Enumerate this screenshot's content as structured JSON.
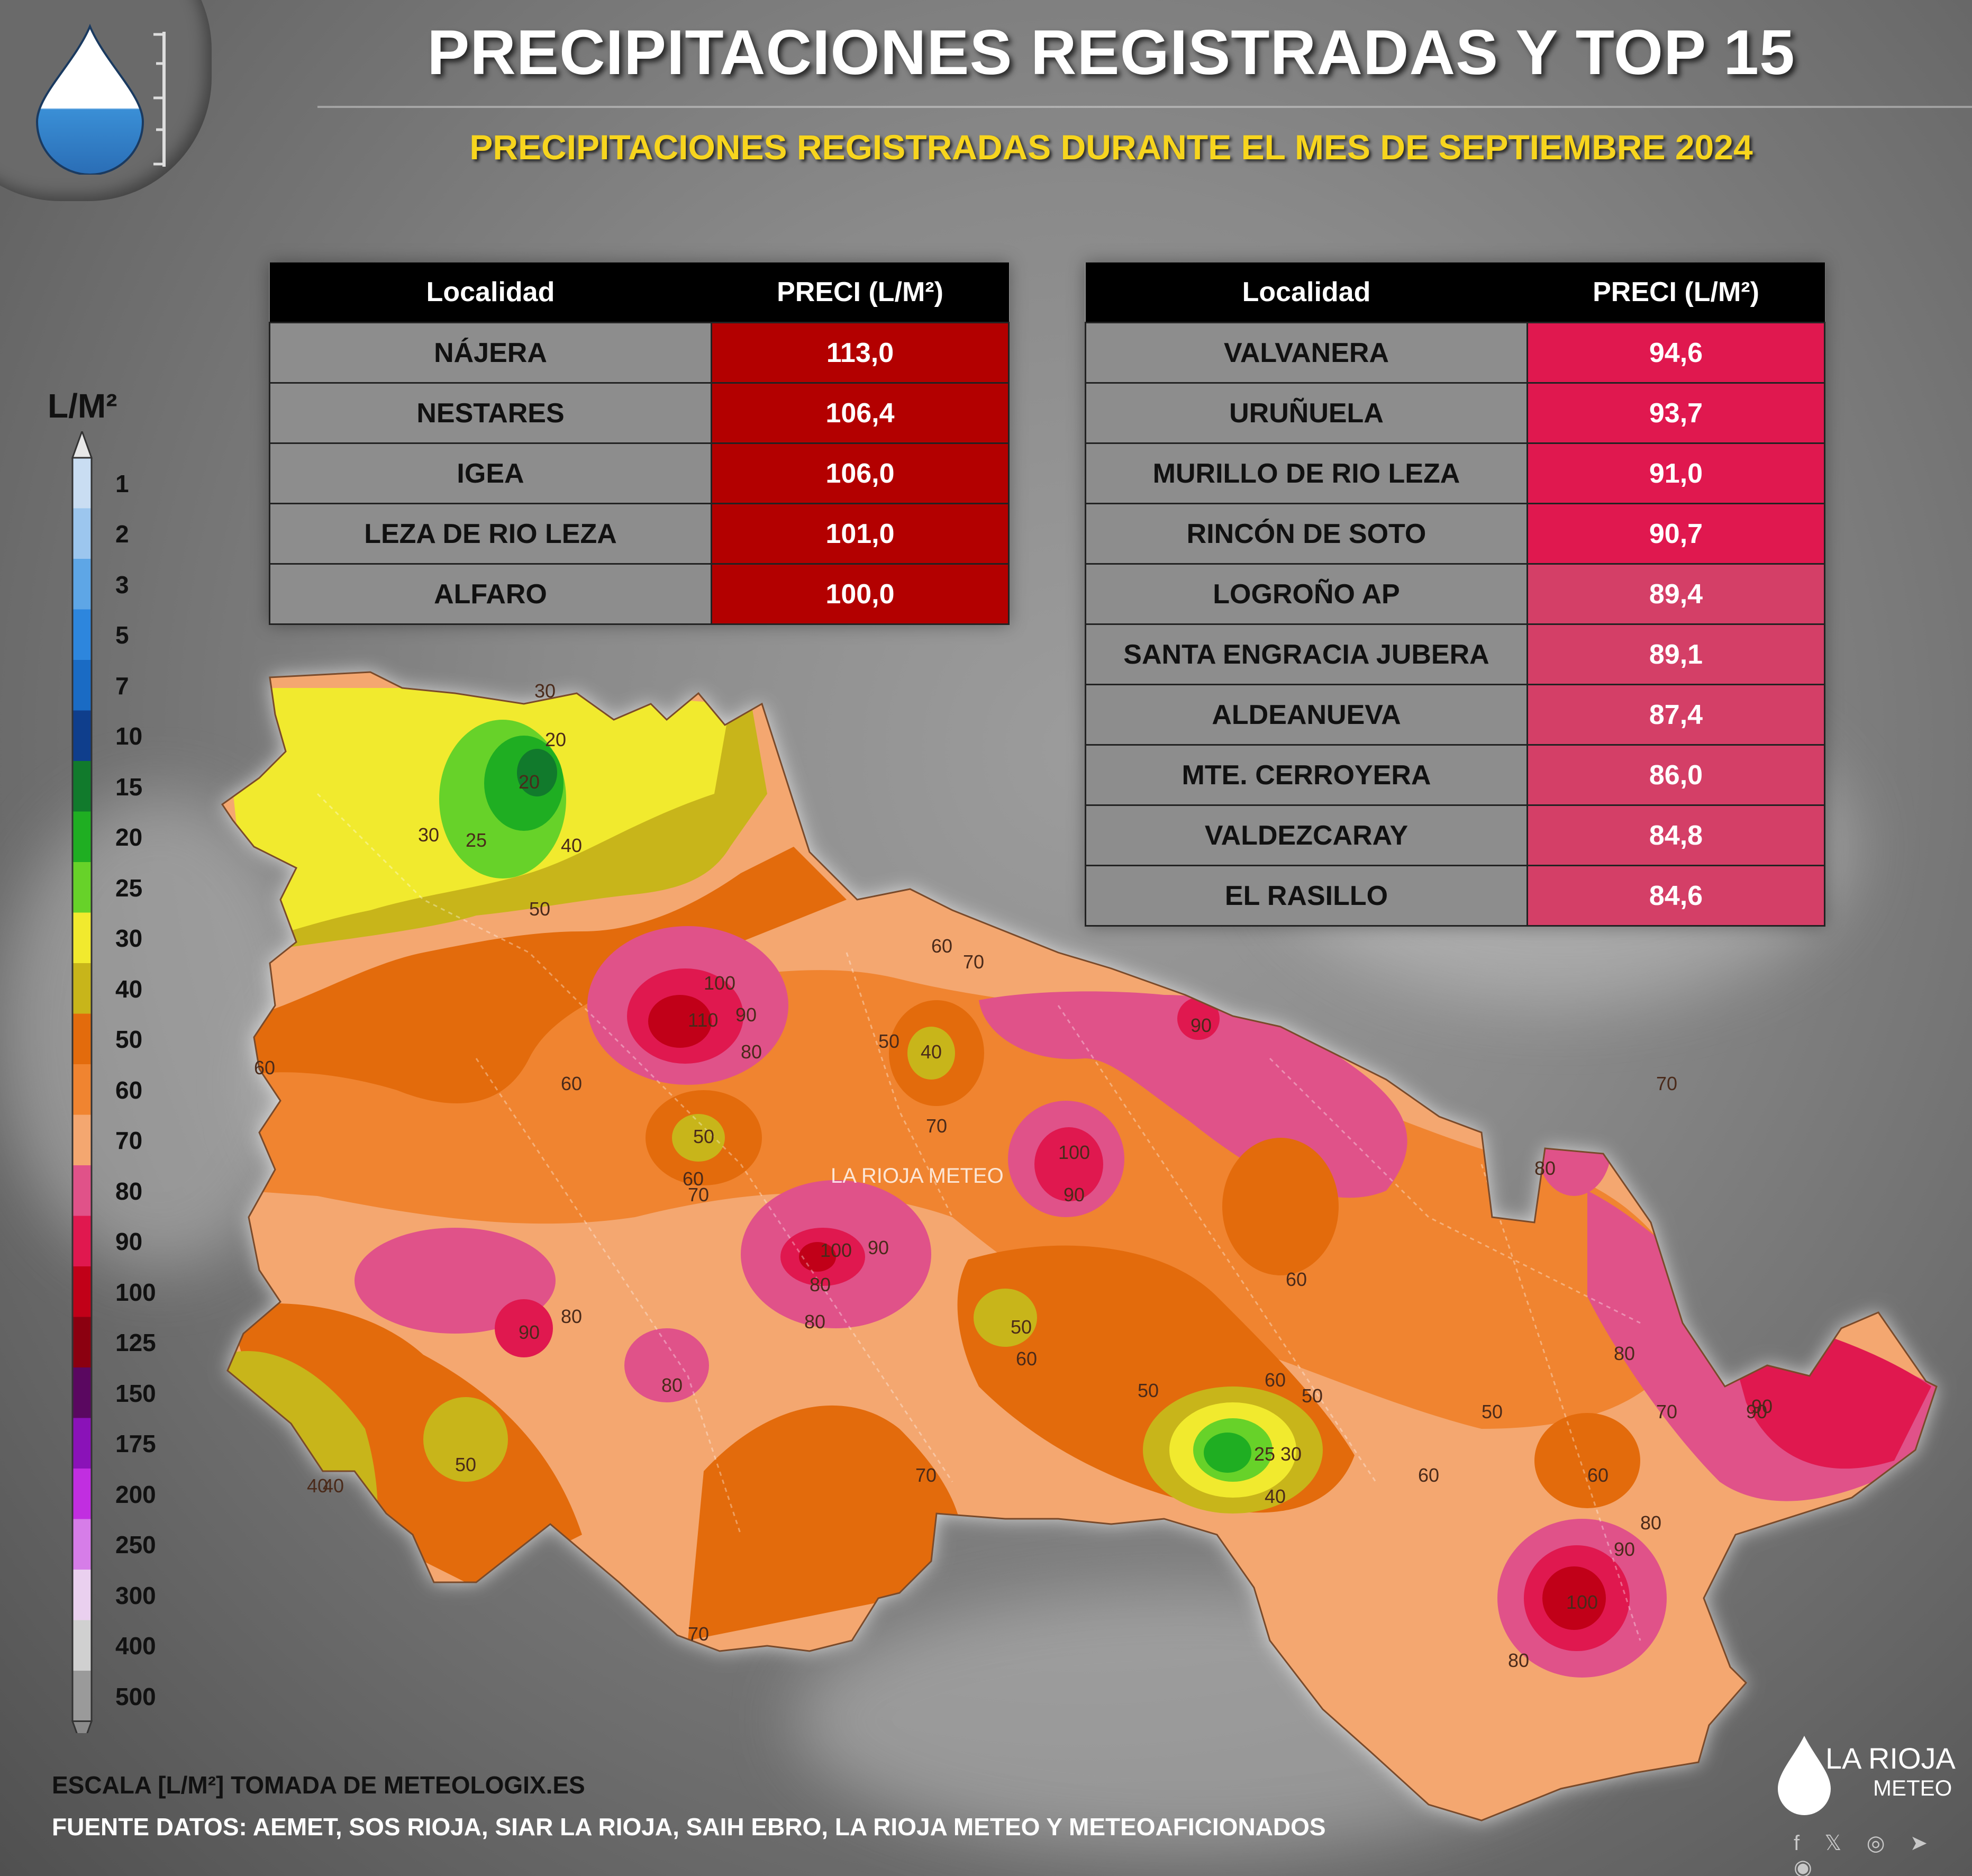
{
  "header": {
    "title": "PRECIPITACIONES REGISTRADAS Y TOP 15",
    "subtitle": "PRECIPITACIONES REGISTRADAS DURANTE EL MES DE SEPTIEMBRE 2024"
  },
  "table_left": {
    "col_locality": "Localidad",
    "col_precip": "PRECI (L/M²)",
    "rows": [
      {
        "locality": "NÁJERA",
        "value": "113,0",
        "color": "#b30000"
      },
      {
        "locality": "NESTARES",
        "value": "106,4",
        "color": "#b30000"
      },
      {
        "locality": "IGEA",
        "value": "106,0",
        "color": "#b30000"
      },
      {
        "locality": "LEZA DE RIO LEZA",
        "value": "101,0",
        "color": "#b30000"
      },
      {
        "locality": "ALFARO",
        "value": "100,0",
        "color": "#b30000"
      }
    ]
  },
  "table_right": {
    "col_locality": "Localidad",
    "col_precip": "PRECI (L/M²)",
    "rows": [
      {
        "locality": "VALVANERA",
        "value": "94,6",
        "color": "#e0184f"
      },
      {
        "locality": "URUÑUELA",
        "value": "93,7",
        "color": "#e0184f"
      },
      {
        "locality": "MURILLO DE RIO LEZA",
        "value": "91,0",
        "color": "#e0184f"
      },
      {
        "locality": "RINCÓN DE SOTO",
        "value": "90,7",
        "color": "#e0184f"
      },
      {
        "locality": "LOGROÑO AP",
        "value": "89,4",
        "color": "#d43f67"
      },
      {
        "locality": "SANTA ENGRACIA JUBERA",
        "value": "89,1",
        "color": "#d43f67"
      },
      {
        "locality": "ALDEANUEVA",
        "value": "87,4",
        "color": "#d43f67"
      },
      {
        "locality": "MTE. CERROYERA",
        "value": "86,0",
        "color": "#d43f67"
      },
      {
        "locality": "VALDEZCARAY",
        "value": "84,8",
        "color": "#d43f67"
      },
      {
        "locality": "EL RASILLO",
        "value": "84,6",
        "color": "#d43f67"
      }
    ]
  },
  "scale": {
    "unit": "L/M²",
    "levels": [
      {
        "label": "1",
        "color": "#c9ddf2"
      },
      {
        "label": "2",
        "color": "#9cc6ee"
      },
      {
        "label": "3",
        "color": "#5ea6e6"
      },
      {
        "label": "5",
        "color": "#2d86dd"
      },
      {
        "label": "7",
        "color": "#1a6bc4"
      },
      {
        "label": "10",
        "color": "#0f3e8c"
      },
      {
        "label": "15",
        "color": "#117a2c"
      },
      {
        "label": "20",
        "color": "#1fae22"
      },
      {
        "label": "25",
        "color": "#67d229"
      },
      {
        "label": "30",
        "color": "#f1ea2e"
      },
      {
        "label": "40",
        "color": "#c8b51a"
      },
      {
        "label": "50",
        "color": "#e36b0c"
      },
      {
        "label": "60",
        "color": "#f08430"
      },
      {
        "label": "70",
        "color": "#f4a770"
      },
      {
        "label": "80",
        "color": "#e05289"
      },
      {
        "label": "90",
        "color": "#e0184f"
      },
      {
        "label": "100",
        "color": "#c10018"
      },
      {
        "label": "125",
        "color": "#8b0010"
      },
      {
        "label": "150",
        "color": "#5a0860"
      },
      {
        "label": "175",
        "color": "#8a12b8"
      },
      {
        "label": "200",
        "color": "#c12ee0"
      },
      {
        "label": "250",
        "color": "#d67de8"
      },
      {
        "label": "300",
        "color": "#ead0ef"
      },
      {
        "label": "400",
        "color": "#d0d0d0"
      },
      {
        "label": "500",
        "color": "#9a9a9a"
      }
    ]
  },
  "map": {
    "watermark": "LA RIOJA METEO",
    "isolines": [
      "30",
      "20",
      "20",
      "25",
      "30",
      "40",
      "50",
      "60",
      "110",
      "100",
      "90",
      "80",
      "70",
      "60",
      "50",
      "40",
      "70",
      "90",
      "100",
      "90",
      "70",
      "50",
      "60",
      "70",
      "80",
      "100",
      "90",
      "80",
      "60",
      "90",
      "80",
      "80",
      "60",
      "50",
      "60",
      "40",
      "50",
      "30",
      "25",
      "40",
      "50",
      "60",
      "90",
      "80",
      "70",
      "60",
      "80",
      "90",
      "100",
      "80",
      "60",
      "70",
      "50",
      "50",
      "40",
      "70",
      "80",
      "90"
    ]
  },
  "footer": {
    "scale_note": "ESCALA [L/M²] TOMADA DE METEOLOGIX.ES",
    "source": "FUENTE DATOS: AEMET, SOS RIOJA, SIAR LA RIOJA, SAIH EBRO, LA RIOJA METEO  Y METEOAFICIONADOS"
  },
  "brand": {
    "name": "LA RIOJA",
    "sub": "METEO",
    "social": "f 𝕏 ◎ ➤ ◉"
  },
  "colors": {
    "title": "#ffffff",
    "subtitle": "#f7d51e",
    "header_bg": "#000000",
    "locality_bg": "#8d8d8d"
  }
}
